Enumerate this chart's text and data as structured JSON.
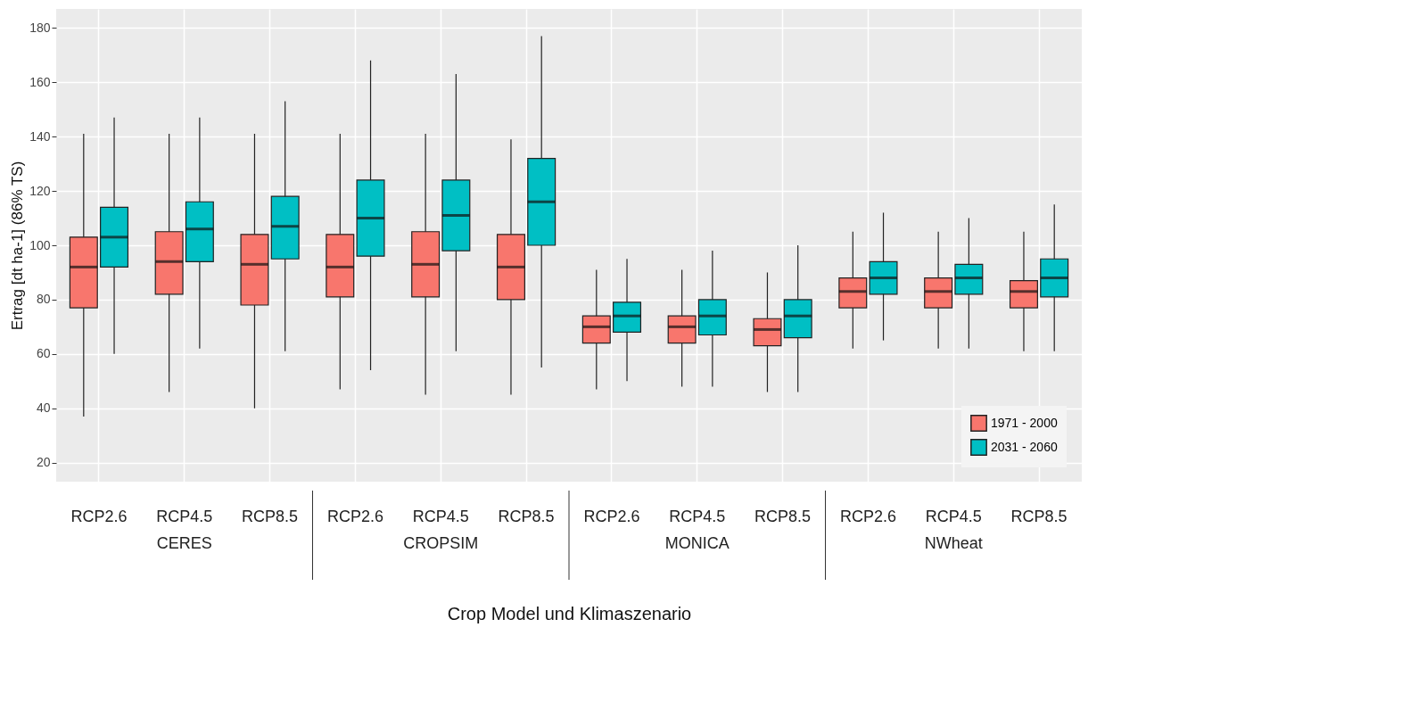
{
  "chart_data": {
    "type": "box",
    "xlabel": "Crop Model und Klimaszenario",
    "ylabel": "Ertrag [dt ha-1] (86% TS)",
    "categories": [
      "RCP2.6",
      "RCP4.5",
      "RCP8.5",
      "RCP2.6",
      "RCP4.5",
      "RCP8.5",
      "RCP2.6",
      "RCP4.5",
      "RCP8.5",
      "RCP2.6",
      "RCP4.5",
      "RCP8.5"
    ],
    "annotations": [
      "CERES",
      "CROPSIM",
      "MONICA",
      "NWheat"
    ],
    "ylim": [
      13,
      187
    ],
    "yticks": [
      20,
      40,
      60,
      80,
      100,
      120,
      140,
      160,
      180
    ],
    "grid": true,
    "legend": "bottom right",
    "series": [
      {
        "name": "1971 - 2000",
        "color": "#f8766d",
        "boxes": [
          {
            "low": 37,
            "q1": 77,
            "median": 92,
            "q3": 103,
            "high": 141
          },
          {
            "low": 46,
            "q1": 82,
            "median": 94,
            "q3": 105,
            "high": 141
          },
          {
            "low": 40,
            "q1": 78,
            "median": 93,
            "q3": 104,
            "high": 141
          },
          {
            "low": 47,
            "q1": 81,
            "median": 92,
            "q3": 104,
            "high": 141
          },
          {
            "low": 45,
            "q1": 81,
            "median": 93,
            "q3": 105,
            "high": 141
          },
          {
            "low": 45,
            "q1": 80,
            "median": 92,
            "q3": 104,
            "high": 139
          },
          {
            "low": 47,
            "q1": 64,
            "median": 70,
            "q3": 74,
            "high": 91
          },
          {
            "low": 48,
            "q1": 64,
            "median": 70,
            "q3": 74,
            "high": 91
          },
          {
            "low": 46,
            "q1": 63,
            "median": 69,
            "q3": 73,
            "high": 90
          },
          {
            "low": 62,
            "q1": 77,
            "median": 83,
            "q3": 88,
            "high": 105
          },
          {
            "low": 62,
            "q1": 77,
            "median": 83,
            "q3": 88,
            "high": 105
          },
          {
            "low": 61,
            "q1": 77,
            "median": 83,
            "q3": 87,
            "high": 105
          }
        ]
      },
      {
        "name": "2031 - 2060",
        "color": "#00bfc4",
        "boxes": [
          {
            "low": 60,
            "q1": 92,
            "median": 103,
            "q3": 114,
            "high": 147
          },
          {
            "low": 62,
            "q1": 94,
            "median": 106,
            "q3": 116,
            "high": 147
          },
          {
            "low": 61,
            "q1": 95,
            "median": 107,
            "q3": 118,
            "high": 153
          },
          {
            "low": 54,
            "q1": 96,
            "median": 110,
            "q3": 124,
            "high": 168
          },
          {
            "low": 61,
            "q1": 98,
            "median": 111,
            "q3": 124,
            "high": 163
          },
          {
            "low": 55,
            "q1": 100,
            "median": 116,
            "q3": 132,
            "high": 177
          },
          {
            "low": 50,
            "q1": 68,
            "median": 74,
            "q3": 79,
            "high": 95
          },
          {
            "low": 48,
            "q1": 67,
            "median": 74,
            "q3": 80,
            "high": 98
          },
          {
            "low": 46,
            "q1": 66,
            "median": 74,
            "q3": 80,
            "high": 100
          },
          {
            "low": 65,
            "q1": 82,
            "median": 88,
            "q3": 94,
            "high": 112
          },
          {
            "low": 62,
            "q1": 82,
            "median": 88,
            "q3": 93,
            "high": 110
          },
          {
            "low": 61,
            "q1": 81,
            "median": 88,
            "q3": 95,
            "high": 115
          }
        ]
      }
    ]
  }
}
